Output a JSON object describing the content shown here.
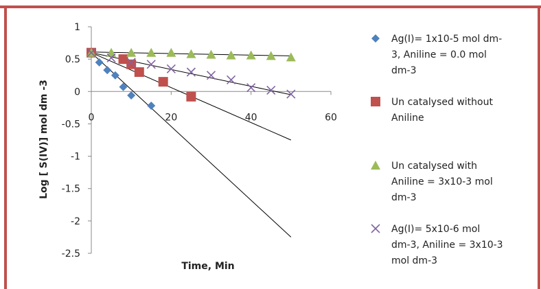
{
  "chart_data": {
    "type": "scatter",
    "xlabel": "Time, Min",
    "ylabel": "Log [ S(IV)] mol dm -3",
    "xlim": [
      0,
      60
    ],
    "ylim": [
      -2.5,
      1
    ],
    "x_ticks": [
      "0",
      "20",
      "40",
      "60"
    ],
    "y_ticks": [
      "1",
      "0.5",
      "0",
      "-0.5",
      "-1",
      "-1.5",
      "-2",
      "-2.5"
    ],
    "grid": false,
    "legend_position": "right",
    "colors": {
      "frame_border": "#c0504d",
      "trendline": "#000000"
    },
    "series": [
      {
        "name": "Ag(I)= 1x10-5 mol dm-3, Aniline = 0.0 mol dm-3",
        "legend_lines": [
          "Ag(I)= 1x10-5 mol dm-",
          "3, Aniline = 0.0 mol",
          "dm-3"
        ],
        "marker": "diamond",
        "color": "#4f81bd",
        "x": [
          0,
          2,
          4,
          6,
          8,
          10,
          15
        ],
        "y": [
          0.6,
          0.45,
          0.33,
          0.25,
          0.07,
          -0.06,
          -0.22
        ],
        "trend": {
          "x": [
            0,
            50
          ],
          "y": [
            0.6,
            -2.25
          ]
        }
      },
      {
        "name": "Un catalysed without Aniline",
        "legend_lines": [
          "Un catalysed without",
          "Aniline"
        ],
        "marker": "square",
        "color": "#c0504d",
        "x": [
          0,
          8,
          10,
          12,
          18,
          25
        ],
        "y": [
          0.6,
          0.5,
          0.42,
          0.3,
          0.15,
          -0.08
        ],
        "trend": {
          "x": [
            0,
            50
          ],
          "y": [
            0.6,
            -0.75
          ]
        }
      },
      {
        "name": "Un catalysed with Aniline = 3x10-3 mol dm-3",
        "legend_lines": [
          "Un catalysed with",
          "Aniline = 3x10-3 mol",
          "dm-3"
        ],
        "marker": "triangle",
        "color": "#9bbb59",
        "x": [
          0,
          5,
          10,
          15,
          20,
          25,
          30,
          35,
          40,
          45,
          50
        ],
        "y": [
          0.6,
          0.6,
          0.6,
          0.6,
          0.6,
          0.58,
          0.57,
          0.56,
          0.56,
          0.55,
          0.53
        ],
        "trend": {
          "x": [
            0,
            50
          ],
          "y": [
            0.61,
            0.55
          ]
        }
      },
      {
        "name": "Ag(I)= 5x10-6 mol dm-3, Aniline = 3x10-3 mol dm-3",
        "legend_lines": [
          "Ag(I)= 5x10-6 mol",
          "dm-3, Aniline = 3x10-3",
          "mol dm-3"
        ],
        "marker": "x",
        "color": "#8064a2",
        "x": [
          0,
          5,
          10,
          15,
          20,
          25,
          30,
          35,
          40,
          45,
          50
        ],
        "y": [
          0.6,
          0.52,
          0.45,
          0.42,
          0.35,
          0.3,
          0.25,
          0.18,
          0.06,
          0.02,
          -0.04
        ],
        "trend": {
          "x": [
            0,
            50
          ],
          "y": [
            0.6,
            -0.05
          ]
        }
      }
    ]
  }
}
